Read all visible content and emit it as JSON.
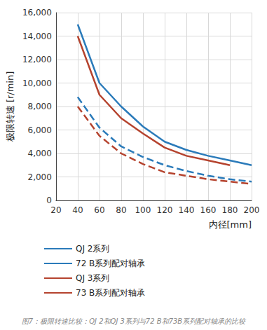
{
  "chart_data": {
    "type": "line",
    "title": "图7：极限转速比较：QJ 2和QJ 3系列与72 B和73B系列配对轴承的比较",
    "x_label": "内径[mm]",
    "y_label": "极限转速 [r/min]",
    "x": [
      40,
      60,
      80,
      100,
      120,
      140,
      160,
      180,
      200
    ],
    "series": [
      {
        "name": "QJ 2系列",
        "color": "#2b7bba",
        "line_style": "solid",
        "values": [
          15000,
          10000,
          8000,
          6300,
          5000,
          4300,
          3800,
          3400,
          3000
        ]
      },
      {
        "name": "72 B系列配对轴承",
        "color": "#2b7bba",
        "line_style": "dashed",
        "values": [
          8800,
          6200,
          4600,
          3700,
          3000,
          2500,
          2100,
          1800,
          1600
        ]
      },
      {
        "name": "QJ 3系列",
        "color": "#b5432e",
        "line_style": "solid",
        "values": [
          14000,
          9000,
          7000,
          5700,
          4500,
          3800,
          3400,
          3000,
          null
        ]
      },
      {
        "name": "73 B系列配对轴承",
        "color": "#b5432e",
        "line_style": "dashed",
        "values": [
          8000,
          5500,
          4000,
          3100,
          2400,
          2100,
          1800,
          1600,
          1400
        ]
      }
    ],
    "xlim": [
      20,
      200
    ],
    "xticks": [
      20,
      40,
      60,
      80,
      100,
      120,
      140,
      160,
      180,
      200
    ],
    "ylim": [
      0,
      16000
    ],
    "yticks": [
      0,
      {
        "value": 2000,
        "label": "2,000"
      },
      {
        "value": 4000,
        "label": "4,000"
      },
      {
        "value": 6000,
        "label": "6,000"
      },
      {
        "value": 8000,
        "label": "8,000"
      },
      {
        "value": 10000,
        "label": "10,000"
      },
      {
        "value": 12000,
        "label": "12,000"
      },
      {
        "value": 14000,
        "label": "14,000"
      },
      {
        "value": 16000,
        "label": "16,000"
      }
    ],
    "grid": true,
    "legend": "bottom"
  }
}
